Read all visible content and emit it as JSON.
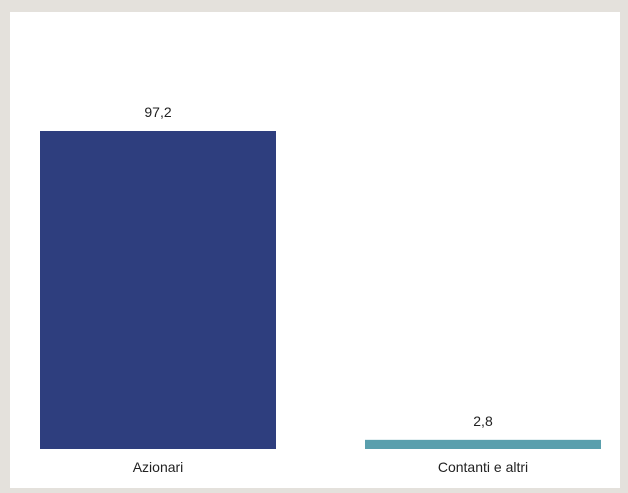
{
  "chart_data": {
    "type": "bar",
    "categories": [
      "Azionari",
      "Contanti e altri"
    ],
    "values": [
      97.2,
      2.8
    ],
    "value_labels": [
      "97,2",
      "2,8"
    ],
    "colors": [
      "#2e3e7e",
      "#5a9fad"
    ],
    "title": "",
    "xlabel": "",
    "ylabel": "",
    "ylim": [
      0,
      100
    ],
    "grid": false,
    "legend": "none"
  }
}
